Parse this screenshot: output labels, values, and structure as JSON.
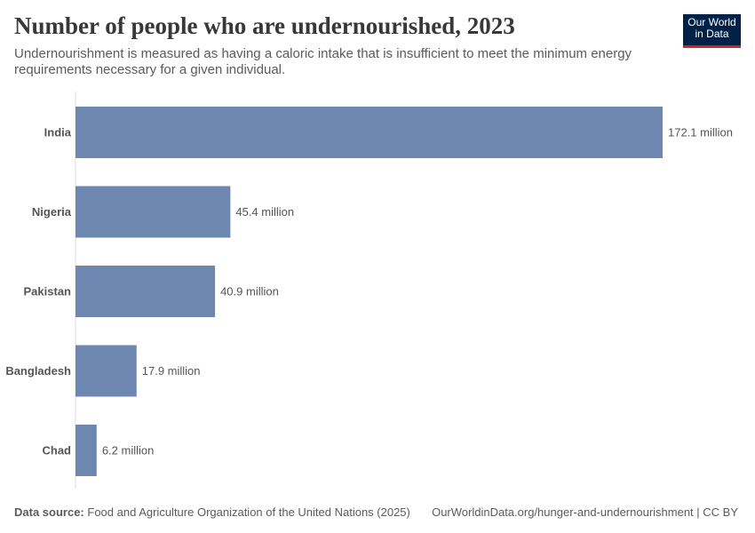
{
  "chart_data": {
    "type": "bar",
    "orientation": "horizontal",
    "title": "Number of people who are undernourished, 2023",
    "subtitle": "Undernourishment is measured as having a caloric intake that is insufficient to meet the minimum energy requirements necessary for a given individual.",
    "categories": [
      "India",
      "Nigeria",
      "Pakistan",
      "Bangladesh",
      "Chad"
    ],
    "values": [
      172.1,
      45.4,
      40.9,
      17.9,
      6.2
    ],
    "value_labels": [
      "172.1 million",
      "45.4 million",
      "40.9 million",
      "17.9 million",
      "6.2 million"
    ],
    "color": "#6d87b0",
    "source_label": "Data source:",
    "source": "Food and Agriculture Organization of the United Nations (2025)",
    "url": "OurWorldinData.org/hunger-and-undernourishment | CC BY",
    "logo": [
      "Our World",
      "in Data"
    ]
  }
}
